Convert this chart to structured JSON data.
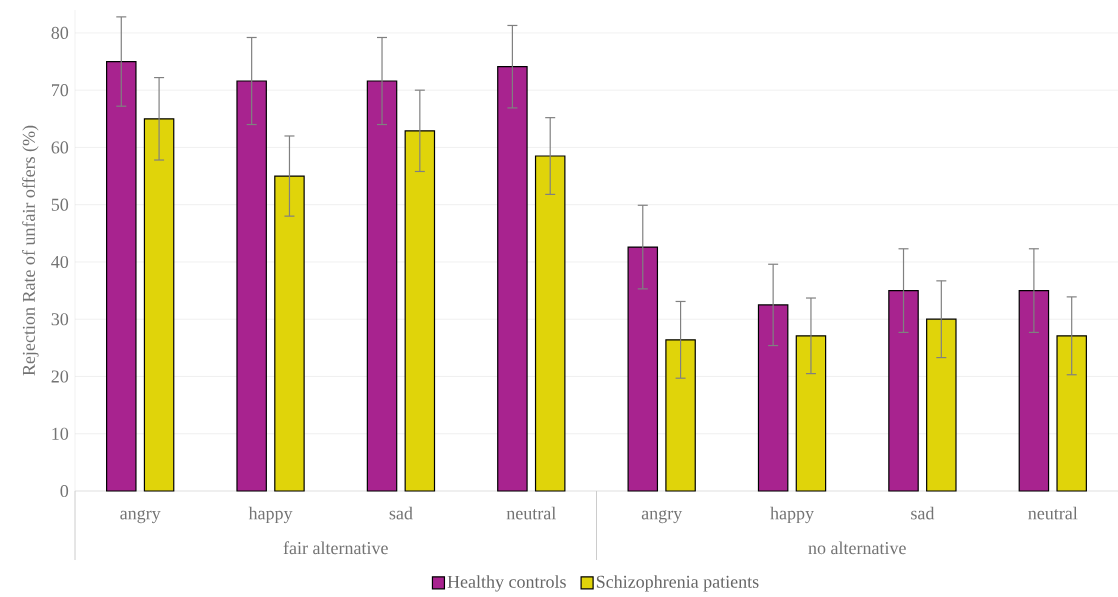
{
  "chart_data": {
    "type": "bar",
    "ylabel": "Rejection Rate of unfair offers (%)",
    "categories": [
      "angry",
      "happy",
      "sad",
      "neutral",
      "angry",
      "happy",
      "sad",
      "neutral"
    ],
    "annotations": [
      "fair alternative",
      "no alternative"
    ],
    "series": [
      {
        "name": "Healthy controls",
        "color": "#a8238f",
        "values": [
          75.0,
          71.6,
          71.6,
          74.1,
          42.6,
          32.5,
          35.0,
          35.0
        ],
        "errors": [
          7.8,
          7.6,
          7.6,
          7.2,
          7.3,
          7.1,
          7.3,
          7.3
        ]
      },
      {
        "name": "Schizophrenia patients",
        "color": "#e0d40a",
        "values": [
          65.0,
          55.0,
          62.9,
          58.5,
          26.4,
          27.1,
          30.0,
          27.1
        ],
        "errors": [
          7.2,
          7.0,
          7.1,
          6.7,
          6.7,
          6.6,
          6.7,
          6.8
        ]
      }
    ],
    "ylim": [
      0,
      84
    ],
    "yticks": [
      0,
      10,
      20,
      30,
      40,
      50,
      60,
      70,
      80
    ],
    "grid": "y",
    "legend": "bottom"
  }
}
